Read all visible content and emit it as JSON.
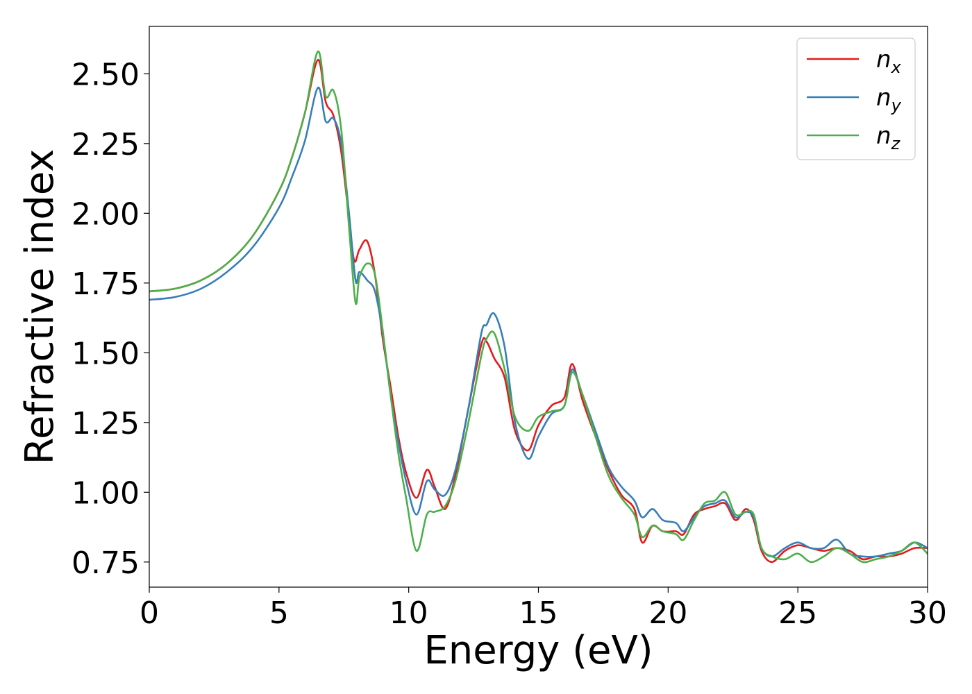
{
  "chart_data": {
    "type": "line",
    "xlabel": "Energy (eV)",
    "ylabel": "Refractive index",
    "xlim": [
      0,
      30
    ],
    "ylim": [
      0.66,
      2.67
    ],
    "xticks": [
      0,
      5,
      10,
      15,
      20,
      25,
      30
    ],
    "xtick_labels": [
      "0",
      "5",
      "10",
      "15",
      "20",
      "25",
      "30"
    ],
    "yticks": [
      0.75,
      1.0,
      1.25,
      1.5,
      1.75,
      2.0,
      2.25,
      2.5
    ],
    "ytick_labels": [
      "0.75",
      "1.00",
      "1.25",
      "1.50",
      "1.75",
      "2.00",
      "2.25",
      "2.50"
    ],
    "grid": false,
    "legend_position": "top-right",
    "series": [
      {
        "name": "n_x",
        "label_base": "n",
        "label_sub": "x",
        "color": "#e41a1c",
        "points": [
          [
            0,
            1.72
          ],
          [
            1,
            1.73
          ],
          [
            2,
            1.76
          ],
          [
            3,
            1.82
          ],
          [
            4,
            1.92
          ],
          [
            5,
            2.08
          ],
          [
            5.5,
            2.2
          ],
          [
            6,
            2.36
          ],
          [
            6.5,
            2.55
          ],
          [
            6.8,
            2.4
          ],
          [
            7.1,
            2.35
          ],
          [
            7.4,
            2.22
          ],
          [
            7.7,
            1.98
          ],
          [
            7.9,
            1.83
          ],
          [
            8.1,
            1.87
          ],
          [
            8.4,
            1.9
          ],
          [
            8.7,
            1.78
          ],
          [
            9.0,
            1.55
          ],
          [
            9.3,
            1.38
          ],
          [
            9.6,
            1.2
          ],
          [
            9.9,
            1.07
          ],
          [
            10.3,
            0.98
          ],
          [
            10.7,
            1.08
          ],
          [
            11.0,
            1.02
          ],
          [
            11.4,
            0.94
          ],
          [
            11.8,
            1.06
          ],
          [
            12.3,
            1.3
          ],
          [
            12.8,
            1.53
          ],
          [
            13.0,
            1.54
          ],
          [
            13.3,
            1.48
          ],
          [
            13.7,
            1.41
          ],
          [
            14.1,
            1.22
          ],
          [
            14.6,
            1.15
          ],
          [
            15.0,
            1.24
          ],
          [
            15.5,
            1.31
          ],
          [
            16.0,
            1.34
          ],
          [
            16.3,
            1.46
          ],
          [
            16.7,
            1.33
          ],
          [
            17.2,
            1.2
          ],
          [
            17.7,
            1.08
          ],
          [
            18.2,
            0.99
          ],
          [
            18.7,
            0.94
          ],
          [
            19.0,
            0.82
          ],
          [
            19.4,
            0.88
          ],
          [
            19.8,
            0.86
          ],
          [
            20.3,
            0.86
          ],
          [
            20.6,
            0.85
          ],
          [
            21.0,
            0.92
          ],
          [
            21.4,
            0.94
          ],
          [
            21.8,
            0.95
          ],
          [
            22.2,
            0.96
          ],
          [
            22.6,
            0.9
          ],
          [
            23.0,
            0.94
          ],
          [
            23.3,
            0.9
          ],
          [
            23.6,
            0.79
          ],
          [
            24.0,
            0.75
          ],
          [
            24.5,
            0.79
          ],
          [
            25.0,
            0.81
          ],
          [
            25.5,
            0.8
          ],
          [
            26.0,
            0.79
          ],
          [
            26.5,
            0.8
          ],
          [
            27.0,
            0.79
          ],
          [
            27.5,
            0.76
          ],
          [
            28.0,
            0.77
          ],
          [
            28.5,
            0.77
          ],
          [
            29.0,
            0.78
          ],
          [
            29.5,
            0.8
          ],
          [
            30.0,
            0.8
          ]
        ]
      },
      {
        "name": "n_y",
        "label_base": "n",
        "label_sub": "y",
        "color": "#377eb8",
        "points": [
          [
            0,
            1.69
          ],
          [
            1,
            1.7
          ],
          [
            2,
            1.73
          ],
          [
            3,
            1.79
          ],
          [
            4,
            1.88
          ],
          [
            5,
            2.02
          ],
          [
            5.5,
            2.13
          ],
          [
            6,
            2.26
          ],
          [
            6.5,
            2.45
          ],
          [
            6.8,
            2.33
          ],
          [
            7.1,
            2.34
          ],
          [
            7.4,
            2.25
          ],
          [
            7.7,
            2.0
          ],
          [
            7.95,
            1.76
          ],
          [
            8.1,
            1.79
          ],
          [
            8.4,
            1.76
          ],
          [
            8.7,
            1.72
          ],
          [
            9.0,
            1.57
          ],
          [
            9.3,
            1.35
          ],
          [
            9.6,
            1.18
          ],
          [
            9.9,
            1.04
          ],
          [
            10.3,
            0.92
          ],
          [
            10.7,
            1.04
          ],
          [
            11.0,
            1.01
          ],
          [
            11.4,
            0.99
          ],
          [
            11.8,
            1.08
          ],
          [
            12.3,
            1.3
          ],
          [
            12.8,
            1.57
          ],
          [
            13.0,
            1.6
          ],
          [
            13.3,
            1.64
          ],
          [
            13.7,
            1.52
          ],
          [
            14.1,
            1.25
          ],
          [
            14.6,
            1.12
          ],
          [
            15.0,
            1.2
          ],
          [
            15.5,
            1.28
          ],
          [
            16.0,
            1.31
          ],
          [
            16.3,
            1.44
          ],
          [
            16.7,
            1.35
          ],
          [
            17.2,
            1.22
          ],
          [
            17.7,
            1.09
          ],
          [
            18.2,
            1.02
          ],
          [
            18.7,
            0.97
          ],
          [
            19.0,
            0.91
          ],
          [
            19.4,
            0.94
          ],
          [
            19.8,
            0.9
          ],
          [
            20.3,
            0.89
          ],
          [
            20.6,
            0.86
          ],
          [
            21.0,
            0.91
          ],
          [
            21.4,
            0.95
          ],
          [
            21.8,
            0.96
          ],
          [
            22.2,
            0.97
          ],
          [
            22.6,
            0.91
          ],
          [
            23.0,
            0.93
          ],
          [
            23.3,
            0.91
          ],
          [
            23.6,
            0.8
          ],
          [
            24.0,
            0.77
          ],
          [
            24.5,
            0.8
          ],
          [
            25.0,
            0.82
          ],
          [
            25.5,
            0.8
          ],
          [
            26.0,
            0.8
          ],
          [
            26.5,
            0.83
          ],
          [
            27.0,
            0.78
          ],
          [
            27.5,
            0.77
          ],
          [
            28.0,
            0.77
          ],
          [
            28.5,
            0.78
          ],
          [
            29.0,
            0.79
          ],
          [
            29.5,
            0.82
          ],
          [
            30.0,
            0.8
          ]
        ]
      },
      {
        "name": "n_z",
        "label_base": "n",
        "label_sub": "z",
        "color": "#4daf4a",
        "points": [
          [
            0,
            1.72
          ],
          [
            1,
            1.73
          ],
          [
            2,
            1.76
          ],
          [
            3,
            1.82
          ],
          [
            4,
            1.92
          ],
          [
            5,
            2.08
          ],
          [
            5.5,
            2.2
          ],
          [
            6,
            2.36
          ],
          [
            6.5,
            2.58
          ],
          [
            6.8,
            2.42
          ],
          [
            7.1,
            2.44
          ],
          [
            7.4,
            2.3
          ],
          [
            7.7,
            1.95
          ],
          [
            7.95,
            1.68
          ],
          [
            8.1,
            1.77
          ],
          [
            8.4,
            1.82
          ],
          [
            8.7,
            1.78
          ],
          [
            9.0,
            1.58
          ],
          [
            9.3,
            1.35
          ],
          [
            9.6,
            1.14
          ],
          [
            9.9,
            0.98
          ],
          [
            10.3,
            0.79
          ],
          [
            10.7,
            0.92
          ],
          [
            11.0,
            0.93
          ],
          [
            11.4,
            0.95
          ],
          [
            11.8,
            1.04
          ],
          [
            12.3,
            1.25
          ],
          [
            12.8,
            1.49
          ],
          [
            13.0,
            1.55
          ],
          [
            13.3,
            1.57
          ],
          [
            13.7,
            1.44
          ],
          [
            14.1,
            1.27
          ],
          [
            14.6,
            1.22
          ],
          [
            15.0,
            1.27
          ],
          [
            15.5,
            1.29
          ],
          [
            16.0,
            1.31
          ],
          [
            16.3,
            1.43
          ],
          [
            16.7,
            1.35
          ],
          [
            17.2,
            1.2
          ],
          [
            17.7,
            1.06
          ],
          [
            18.2,
            0.98
          ],
          [
            18.7,
            0.92
          ],
          [
            19.0,
            0.84
          ],
          [
            19.4,
            0.88
          ],
          [
            19.8,
            0.86
          ],
          [
            20.3,
            0.85
          ],
          [
            20.6,
            0.83
          ],
          [
            21.0,
            0.9
          ],
          [
            21.4,
            0.96
          ],
          [
            21.8,
            0.97
          ],
          [
            22.2,
            1.0
          ],
          [
            22.6,
            0.92
          ],
          [
            23.0,
            0.93
          ],
          [
            23.3,
            0.92
          ],
          [
            23.6,
            0.8
          ],
          [
            24.0,
            0.77
          ],
          [
            24.5,
            0.76
          ],
          [
            25.0,
            0.78
          ],
          [
            25.5,
            0.75
          ],
          [
            26.0,
            0.77
          ],
          [
            26.5,
            0.8
          ],
          [
            27.0,
            0.78
          ],
          [
            27.5,
            0.75
          ],
          [
            28.0,
            0.76
          ],
          [
            28.5,
            0.77
          ],
          [
            29.0,
            0.79
          ],
          [
            29.5,
            0.82
          ],
          [
            30.0,
            0.78
          ]
        ]
      }
    ]
  }
}
